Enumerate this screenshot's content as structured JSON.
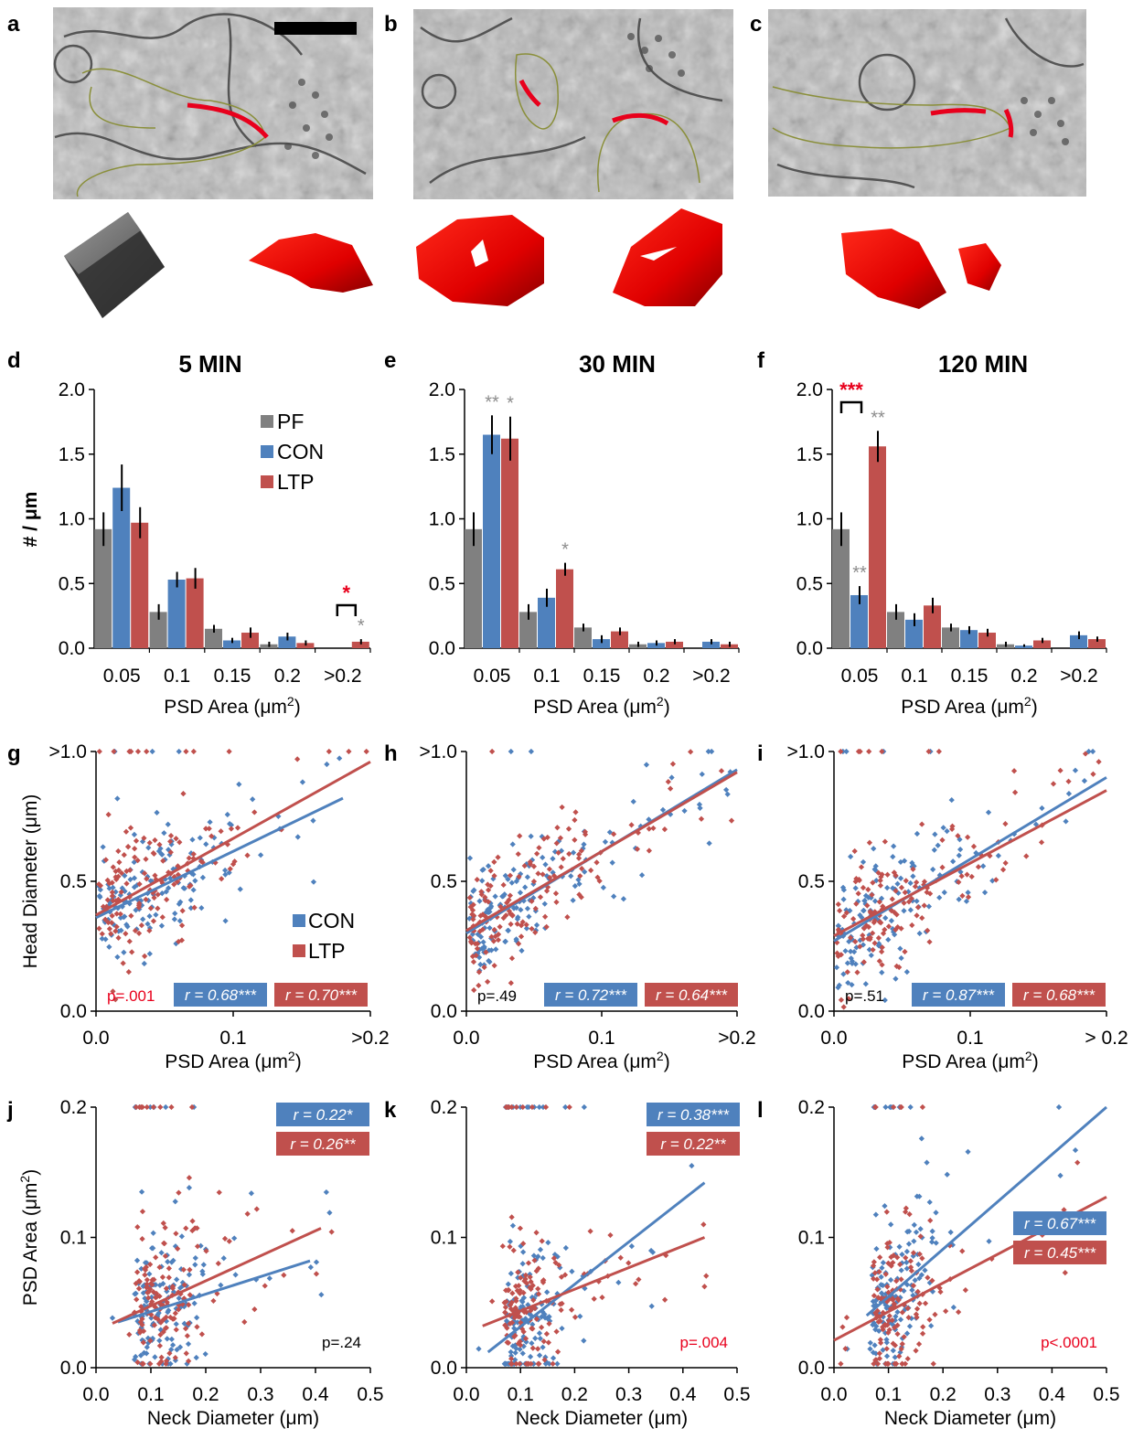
{
  "colors": {
    "pf": "#808080",
    "con": "#4f81bd",
    "ltp": "#c0504d",
    "sig_red": "#e8001c",
    "sig_gray": "#8c8c8c",
    "em_outline": "#8a8f3a"
  },
  "panel_letters": [
    "a",
    "b",
    "c",
    "d",
    "e",
    "f",
    "g",
    "h",
    "i",
    "j",
    "k",
    "l"
  ],
  "scale_bar_icon": "black-scale-bar",
  "reference_cube_icon": "gray-cube",
  "psd_reconstruction_icon": "red-psd-surface",
  "chart_data": [
    {
      "panel": "d",
      "type": "bar",
      "title": "5 MIN",
      "categories": [
        "0.05",
        "0.1",
        "0.15",
        "0.2",
        ">0.2"
      ],
      "xlabel": "PSD Area (μm²)",
      "ylabel": "# / μm",
      "ylim": [
        0,
        2.0
      ],
      "yticks": [
        "0.0",
        "0.5",
        "1.0",
        "1.5",
        "2.0"
      ],
      "legend": {
        "position": "top-right",
        "entries": [
          "PF",
          "CON",
          "LTP"
        ]
      },
      "series": [
        {
          "name": "PF",
          "values": [
            0.92,
            0.28,
            0.15,
            0.03,
            0.0
          ],
          "errors": [
            0.13,
            0.06,
            0.03,
            0.02,
            0.0
          ]
        },
        {
          "name": "CON",
          "values": [
            1.24,
            0.53,
            0.06,
            0.09,
            0.0
          ],
          "errors": [
            0.18,
            0.06,
            0.02,
            0.03,
            0.0
          ]
        },
        {
          "name": "LTP",
          "values": [
            0.97,
            0.54,
            0.12,
            0.04,
            0.05
          ],
          "errors": [
            0.12,
            0.08,
            0.04,
            0.02,
            0.02
          ]
        }
      ],
      "annotations": [
        {
          "text": "*",
          "category": 4,
          "color": "red",
          "bracket": true
        },
        {
          "text": "*",
          "category": 4,
          "color": "gray"
        }
      ]
    },
    {
      "panel": "e",
      "type": "bar",
      "title": "30 MIN",
      "categories": [
        "0.05",
        "0.1",
        "0.15",
        "0.2",
        ">0.2"
      ],
      "xlabel": "PSD Area (μm²)",
      "ylabel": "",
      "ylim": [
        0,
        2.0
      ],
      "yticks": [
        "0.0",
        "0.5",
        "1.0",
        "1.5",
        "2.0"
      ],
      "series": [
        {
          "name": "PF",
          "values": [
            0.92,
            0.28,
            0.16,
            0.03,
            0.0
          ],
          "errors": [
            0.13,
            0.06,
            0.03,
            0.02,
            0.0
          ]
        },
        {
          "name": "CON",
          "values": [
            1.65,
            0.39,
            0.07,
            0.04,
            0.05
          ],
          "errors": [
            0.15,
            0.07,
            0.03,
            0.02,
            0.02
          ]
        },
        {
          "name": "LTP",
          "values": [
            1.62,
            0.61,
            0.13,
            0.05,
            0.03
          ],
          "errors": [
            0.17,
            0.05,
            0.03,
            0.02,
            0.02
          ]
        }
      ],
      "annotations": [
        {
          "text": "**",
          "category": 0,
          "color": "gray",
          "series": "CON"
        },
        {
          "text": "*",
          "category": 0,
          "color": "gray",
          "series": "LTP"
        },
        {
          "text": "*",
          "category": 1,
          "color": "gray",
          "series": "LTP"
        }
      ]
    },
    {
      "panel": "f",
      "type": "bar",
      "title": "120 MIN",
      "categories": [
        "0.05",
        "0.1",
        "0.15",
        "0.2",
        ">0.2"
      ],
      "xlabel": "PSD Area (μm²)",
      "ylabel": "",
      "ylim": [
        0,
        2.0
      ],
      "yticks": [
        "0.0",
        "0.5",
        "1.0",
        "1.5",
        "2.0"
      ],
      "series": [
        {
          "name": "PF",
          "values": [
            0.92,
            0.28,
            0.16,
            0.03,
            0.0
          ],
          "errors": [
            0.13,
            0.06,
            0.03,
            0.02,
            0.0
          ]
        },
        {
          "name": "CON",
          "values": [
            0.41,
            0.22,
            0.14,
            0.02,
            0.1
          ],
          "errors": [
            0.07,
            0.05,
            0.03,
            0.01,
            0.03
          ]
        },
        {
          "name": "LTP",
          "values": [
            1.56,
            0.33,
            0.12,
            0.06,
            0.07
          ],
          "errors": [
            0.12,
            0.06,
            0.03,
            0.02,
            0.02
          ]
        }
      ],
      "annotations": [
        {
          "text": "***",
          "category": 0,
          "color": "red",
          "bracket": true
        },
        {
          "text": "**",
          "category": 0,
          "color": "gray",
          "series": "LTP"
        },
        {
          "text": "**",
          "category": 0,
          "color": "gray",
          "series": "CON"
        }
      ]
    },
    {
      "panel": "g",
      "type": "scatter",
      "xlabel": "PSD Area (μm²)",
      "ylabel": "Head Diameter (μm)",
      "xlim": [
        0,
        0.2
      ],
      "ylim": [
        0,
        1.0
      ],
      "xticks": [
        "0.0",
        "0.1",
        ">0.2"
      ],
      "yticks": [
        "0.0",
        "0.5",
        ">1.0"
      ],
      "legend": {
        "position": "center-right",
        "entries": [
          "CON",
          "LTP"
        ]
      },
      "p_value": "p=.001",
      "p_color": "red",
      "series": [
        {
          "name": "CON",
          "r_label": "r = 0.68***",
          "fit": [
            [
              0.0,
              0.36
            ],
            [
              0.18,
              0.82
            ]
          ]
        },
        {
          "name": "LTP",
          "r_label": "r = 0.70***",
          "fit": [
            [
              0.0,
              0.37
            ],
            [
              0.2,
              0.96
            ]
          ]
        }
      ]
    },
    {
      "panel": "h",
      "type": "scatter",
      "xlabel": "PSD Area (μm²)",
      "ylabel": "",
      "xlim": [
        0,
        0.2
      ],
      "ylim": [
        0,
        1.0
      ],
      "xticks": [
        "0.0",
        "0.1",
        ">0.2"
      ],
      "yticks": [
        "0.0",
        "0.5",
        ">1.0"
      ],
      "p_value": "p=.49",
      "p_color": "black",
      "series": [
        {
          "name": "CON",
          "r_label": "r = 0.72***",
          "fit": [
            [
              0.0,
              0.3
            ],
            [
              0.2,
              0.93
            ]
          ]
        },
        {
          "name": "LTP",
          "r_label": "r = 0.64***",
          "fit": [
            [
              0.0,
              0.31
            ],
            [
              0.2,
              0.92
            ]
          ]
        }
      ]
    },
    {
      "panel": "i",
      "type": "scatter",
      "xlabel": "PSD Area (μm²)",
      "ylabel": "",
      "xlim": [
        0,
        0.2
      ],
      "ylim": [
        0,
        1.0
      ],
      "xticks": [
        "0.0",
        "0.1",
        "> 0.2"
      ],
      "yticks": [
        "0.0",
        "0.5",
        ">1.0"
      ],
      "p_value": "p=.51",
      "p_color": "black",
      "series": [
        {
          "name": "CON",
          "r_label": "r = 0.87***",
          "fit": [
            [
              0.0,
              0.27
            ],
            [
              0.2,
              0.9
            ]
          ]
        },
        {
          "name": "LTP",
          "r_label": "r = 0.68***",
          "fit": [
            [
              0.0,
              0.29
            ],
            [
              0.2,
              0.85
            ]
          ]
        }
      ]
    },
    {
      "panel": "j",
      "type": "scatter",
      "xlabel": "Neck Diameter (μm)",
      "ylabel": "PSD Area (μm²)",
      "xlim": [
        0,
        0.5
      ],
      "ylim": [
        0,
        0.2
      ],
      "xticks": [
        "0.0",
        "0.1",
        "0.2",
        "0.3",
        "0.4",
        "0.5"
      ],
      "yticks": [
        "0.0",
        "0.1",
        "0.2"
      ],
      "p_value": "p=.24",
      "p_color": "black",
      "series": [
        {
          "name": "CON",
          "r_label": "r = 0.22*",
          "fit": [
            [
              0.04,
              0.035
            ],
            [
              0.39,
              0.082
            ]
          ]
        },
        {
          "name": "LTP",
          "r_label": "r = 0.26**",
          "fit": [
            [
              0.03,
              0.034
            ],
            [
              0.41,
              0.107
            ]
          ]
        }
      ]
    },
    {
      "panel": "k",
      "type": "scatter",
      "xlabel": "Neck Diameter (μm)",
      "ylabel": "",
      "xlim": [
        0,
        0.5
      ],
      "ylim": [
        0,
        0.2
      ],
      "xticks": [
        "0.0",
        "0.1",
        "0.2",
        "0.3",
        "0.4",
        "0.5"
      ],
      "yticks": [
        "0.0",
        "0.1",
        "0.2"
      ],
      "p_value": "p=.004",
      "p_color": "red",
      "series": [
        {
          "name": "CON",
          "r_label": "r = 0.38***",
          "fit": [
            [
              0.04,
              0.012
            ],
            [
              0.44,
              0.142
            ]
          ]
        },
        {
          "name": "LTP",
          "r_label": "r = 0.22**",
          "fit": [
            [
              0.03,
              0.032
            ],
            [
              0.44,
              0.1
            ]
          ]
        }
      ]
    },
    {
      "panel": "l",
      "type": "scatter",
      "xlabel": "Neck Diameter (μm)",
      "ylabel": "",
      "xlim": [
        0,
        0.5
      ],
      "ylim": [
        0,
        0.2
      ],
      "xticks": [
        "0.0",
        "0.1",
        "0.2",
        "0.3",
        "0.4",
        "0.5"
      ],
      "yticks": [
        "0.0",
        "0.1",
        "0.2"
      ],
      "p_value": "p<.0001",
      "p_color": "red",
      "series": [
        {
          "name": "CON",
          "r_label": "r = 0.67***",
          "fit": [
            [
              0.06,
              0.04
            ],
            [
              0.5,
              0.2
            ]
          ]
        },
        {
          "name": "LTP",
          "r_label": "r = 0.45***",
          "fit": [
            [
              0.0,
              0.021
            ],
            [
              0.5,
              0.131
            ]
          ]
        }
      ]
    }
  ]
}
